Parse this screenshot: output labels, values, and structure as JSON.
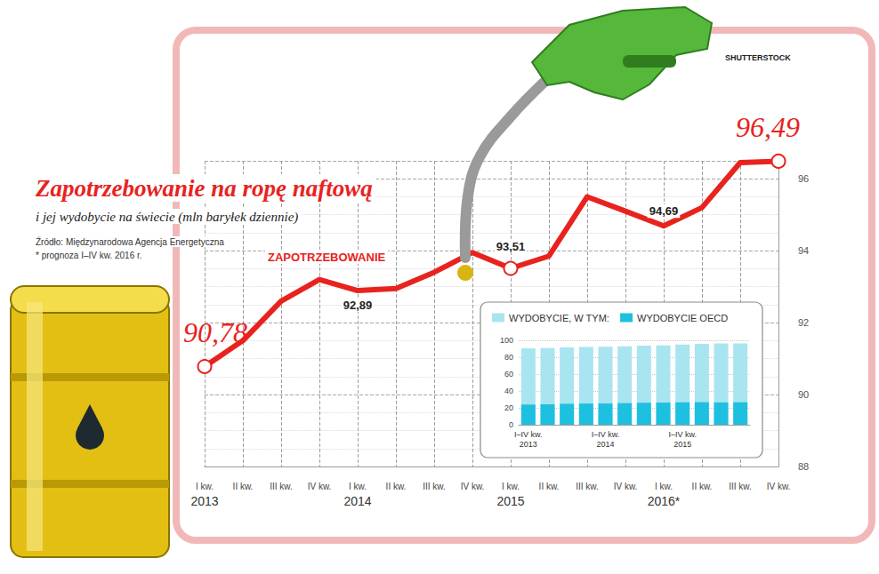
{
  "chart_data": [
    {
      "type": "line",
      "title": "Zapotrzebowanie na ropę naftową",
      "subtitle": "i jej wydobycie na świecie (mln baryłek dziennie)",
      "source": "Źródło: Międzynarodowa Agencja Energetyczna",
      "note": "* prognoza I–IV kw. 2016 r.",
      "credit": "SHUTTERSTOCK",
      "categories": [
        "I kw.",
        "II kw.",
        "III kw.",
        "IV kw.",
        "I kw.",
        "II kw.",
        "III kw.",
        "IV kw.",
        "I kw.",
        "II kw.",
        "III kw.",
        "IV kw.",
        "I kw.",
        "II kw.",
        "III kw.",
        "IV kw."
      ],
      "year_labels": [
        "2013",
        null,
        null,
        null,
        "2014",
        null,
        null,
        null,
        "2015",
        null,
        null,
        null,
        "2016*",
        null,
        null,
        null
      ],
      "series": [
        {
          "name": "ZAPOTRZEBOWANIE",
          "color": "#e8231e",
          "marker": "circle",
          "values": [
            90.78,
            91.5,
            92.6,
            93.2,
            92.89,
            92.95,
            93.4,
            93.95,
            93.51,
            93.85,
            95.5,
            95.1,
            94.69,
            95.2,
            96.45,
            96.49
          ],
          "value_labels": [
            "90,78",
            null,
            null,
            null,
            "92,89",
            null,
            null,
            null,
            "93,51",
            null,
            null,
            null,
            "94,69",
            null,
            null,
            "96,49"
          ]
        }
      ],
      "ylim": [
        88,
        96.5
      ],
      "yticks": [
        88,
        90,
        92,
        94,
        96
      ],
      "grid": true,
      "data_labels": true
    },
    {
      "type": "bar",
      "categories": [
        "I–IV kw.\n2013",
        null,
        null,
        null,
        "I–IV kw.\n2014",
        null,
        null,
        null,
        "I–IV kw.\n2015",
        null,
        null,
        null
      ],
      "series": [
        {
          "name": "WYDOBYCIE, W TYM:",
          "color": "#a9e4f1",
          "values": [
            90.4,
            90.9,
            91.6,
            92.0,
            92.4,
            92.9,
            93.6,
            94.0,
            95.1,
            95.8,
            96.3,
            96.4
          ]
        },
        {
          "name": "WYDOBYCIE OECD",
          "color": "#1ec0df",
          "values": [
            23.9,
            24.2,
            24.8,
            25.1,
            25.2,
            25.6,
            26.0,
            26.2,
            26.5,
            26.7,
            26.4,
            26.6
          ]
        }
      ],
      "ylim": [
        0,
        100
      ],
      "yticks": [
        0,
        20,
        40,
        60,
        80,
        100
      ],
      "grid": true,
      "legend": "top left"
    }
  ]
}
